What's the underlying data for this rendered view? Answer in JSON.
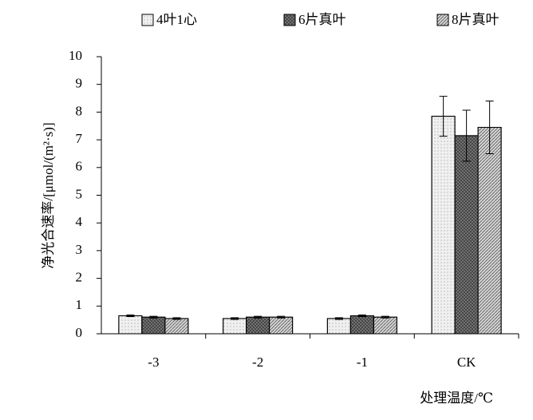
{
  "chart_data": {
    "type": "bar",
    "y_label": "净光合速率/[μmol/(m²·s)]",
    "x_label": "处理温度/℃",
    "categories": [
      "-3",
      "-2",
      "-1",
      "CK"
    ],
    "series": [
      {
        "name": "4叶1心",
        "color": "#f0f0f0",
        "values": [
          0.65,
          0.55,
          0.55,
          7.85
        ],
        "errors": [
          0.03,
          0.03,
          0.03,
          0.72
        ]
      },
      {
        "name": "6片真叶",
        "color": "#7a7a7a",
        "values": [
          0.6,
          0.6,
          0.65,
          7.15
        ],
        "errors": [
          0.03,
          0.03,
          0.03,
          0.92
        ]
      },
      {
        "name": "8片真叶",
        "color": "#d4d4d4",
        "values": [
          0.55,
          0.6,
          0.6,
          7.45
        ],
        "errors": [
          0.03,
          0.03,
          0.03,
          0.95
        ]
      }
    ],
    "ylim": [
      0,
      10
    ],
    "yticks": [
      0,
      1,
      2,
      3,
      4,
      5,
      6,
      7,
      8,
      9,
      10
    ]
  }
}
